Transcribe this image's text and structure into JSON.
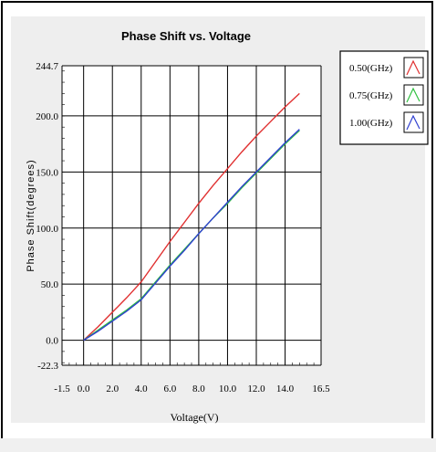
{
  "chart_data": {
    "type": "line",
    "title": "Phase Shift vs. Voltage",
    "xlabel": "Voltage(V)",
    "ylabel": "Phase Shift(degrees)",
    "xlim": [
      -1.5,
      16.5
    ],
    "ylim": [
      -22.3,
      244.7
    ],
    "x_ticks": [
      "-1.5",
      "0.0",
      "2.0",
      "4.0",
      "6.0",
      "8.0",
      "10.0",
      "12.0",
      "14.0",
      "16.5"
    ],
    "x_tick_values": [
      -1.5,
      0,
      2,
      4,
      6,
      8,
      10,
      12,
      14,
      16.5
    ],
    "y_ticks": [
      "-22.3",
      "0.0",
      "50.0",
      "100.0",
      "150.0",
      "200.0",
      "244.7"
    ],
    "y_tick_values": [
      -22.3,
      0,
      50,
      100,
      150,
      200,
      244.7
    ],
    "grid": true,
    "legend_position": "top-right",
    "series": [
      {
        "name": "0.50(GHz)",
        "color": "#e03030",
        "x": [
          0,
          1,
          2,
          3,
          4,
          5,
          6,
          7,
          8,
          9,
          10,
          11,
          12,
          13,
          14,
          15
        ],
        "y": [
          0,
          12,
          25,
          38,
          52,
          70,
          88,
          105,
          122,
          138,
          153,
          168,
          182,
          195,
          208,
          220
        ]
      },
      {
        "name": "0.75(GHz)",
        "color": "#30c040",
        "x": [
          0,
          1,
          2,
          3,
          4,
          5,
          6,
          7,
          8,
          9,
          10,
          11,
          12,
          13,
          14,
          15
        ],
        "y": [
          0,
          9,
          18,
          27,
          37,
          52,
          67,
          81,
          95,
          109,
          122,
          136,
          149,
          162,
          175,
          187
        ]
      },
      {
        "name": "1.00(GHz)",
        "color": "#3040d0",
        "x": [
          0,
          1,
          2,
          3,
          4,
          5,
          6,
          7,
          8,
          9,
          10,
          11,
          12,
          13,
          14,
          15
        ],
        "y": [
          0,
          8,
          17,
          26,
          36,
          51,
          66,
          80,
          95,
          109,
          123,
          137,
          150,
          163,
          176,
          188
        ]
      }
    ]
  }
}
